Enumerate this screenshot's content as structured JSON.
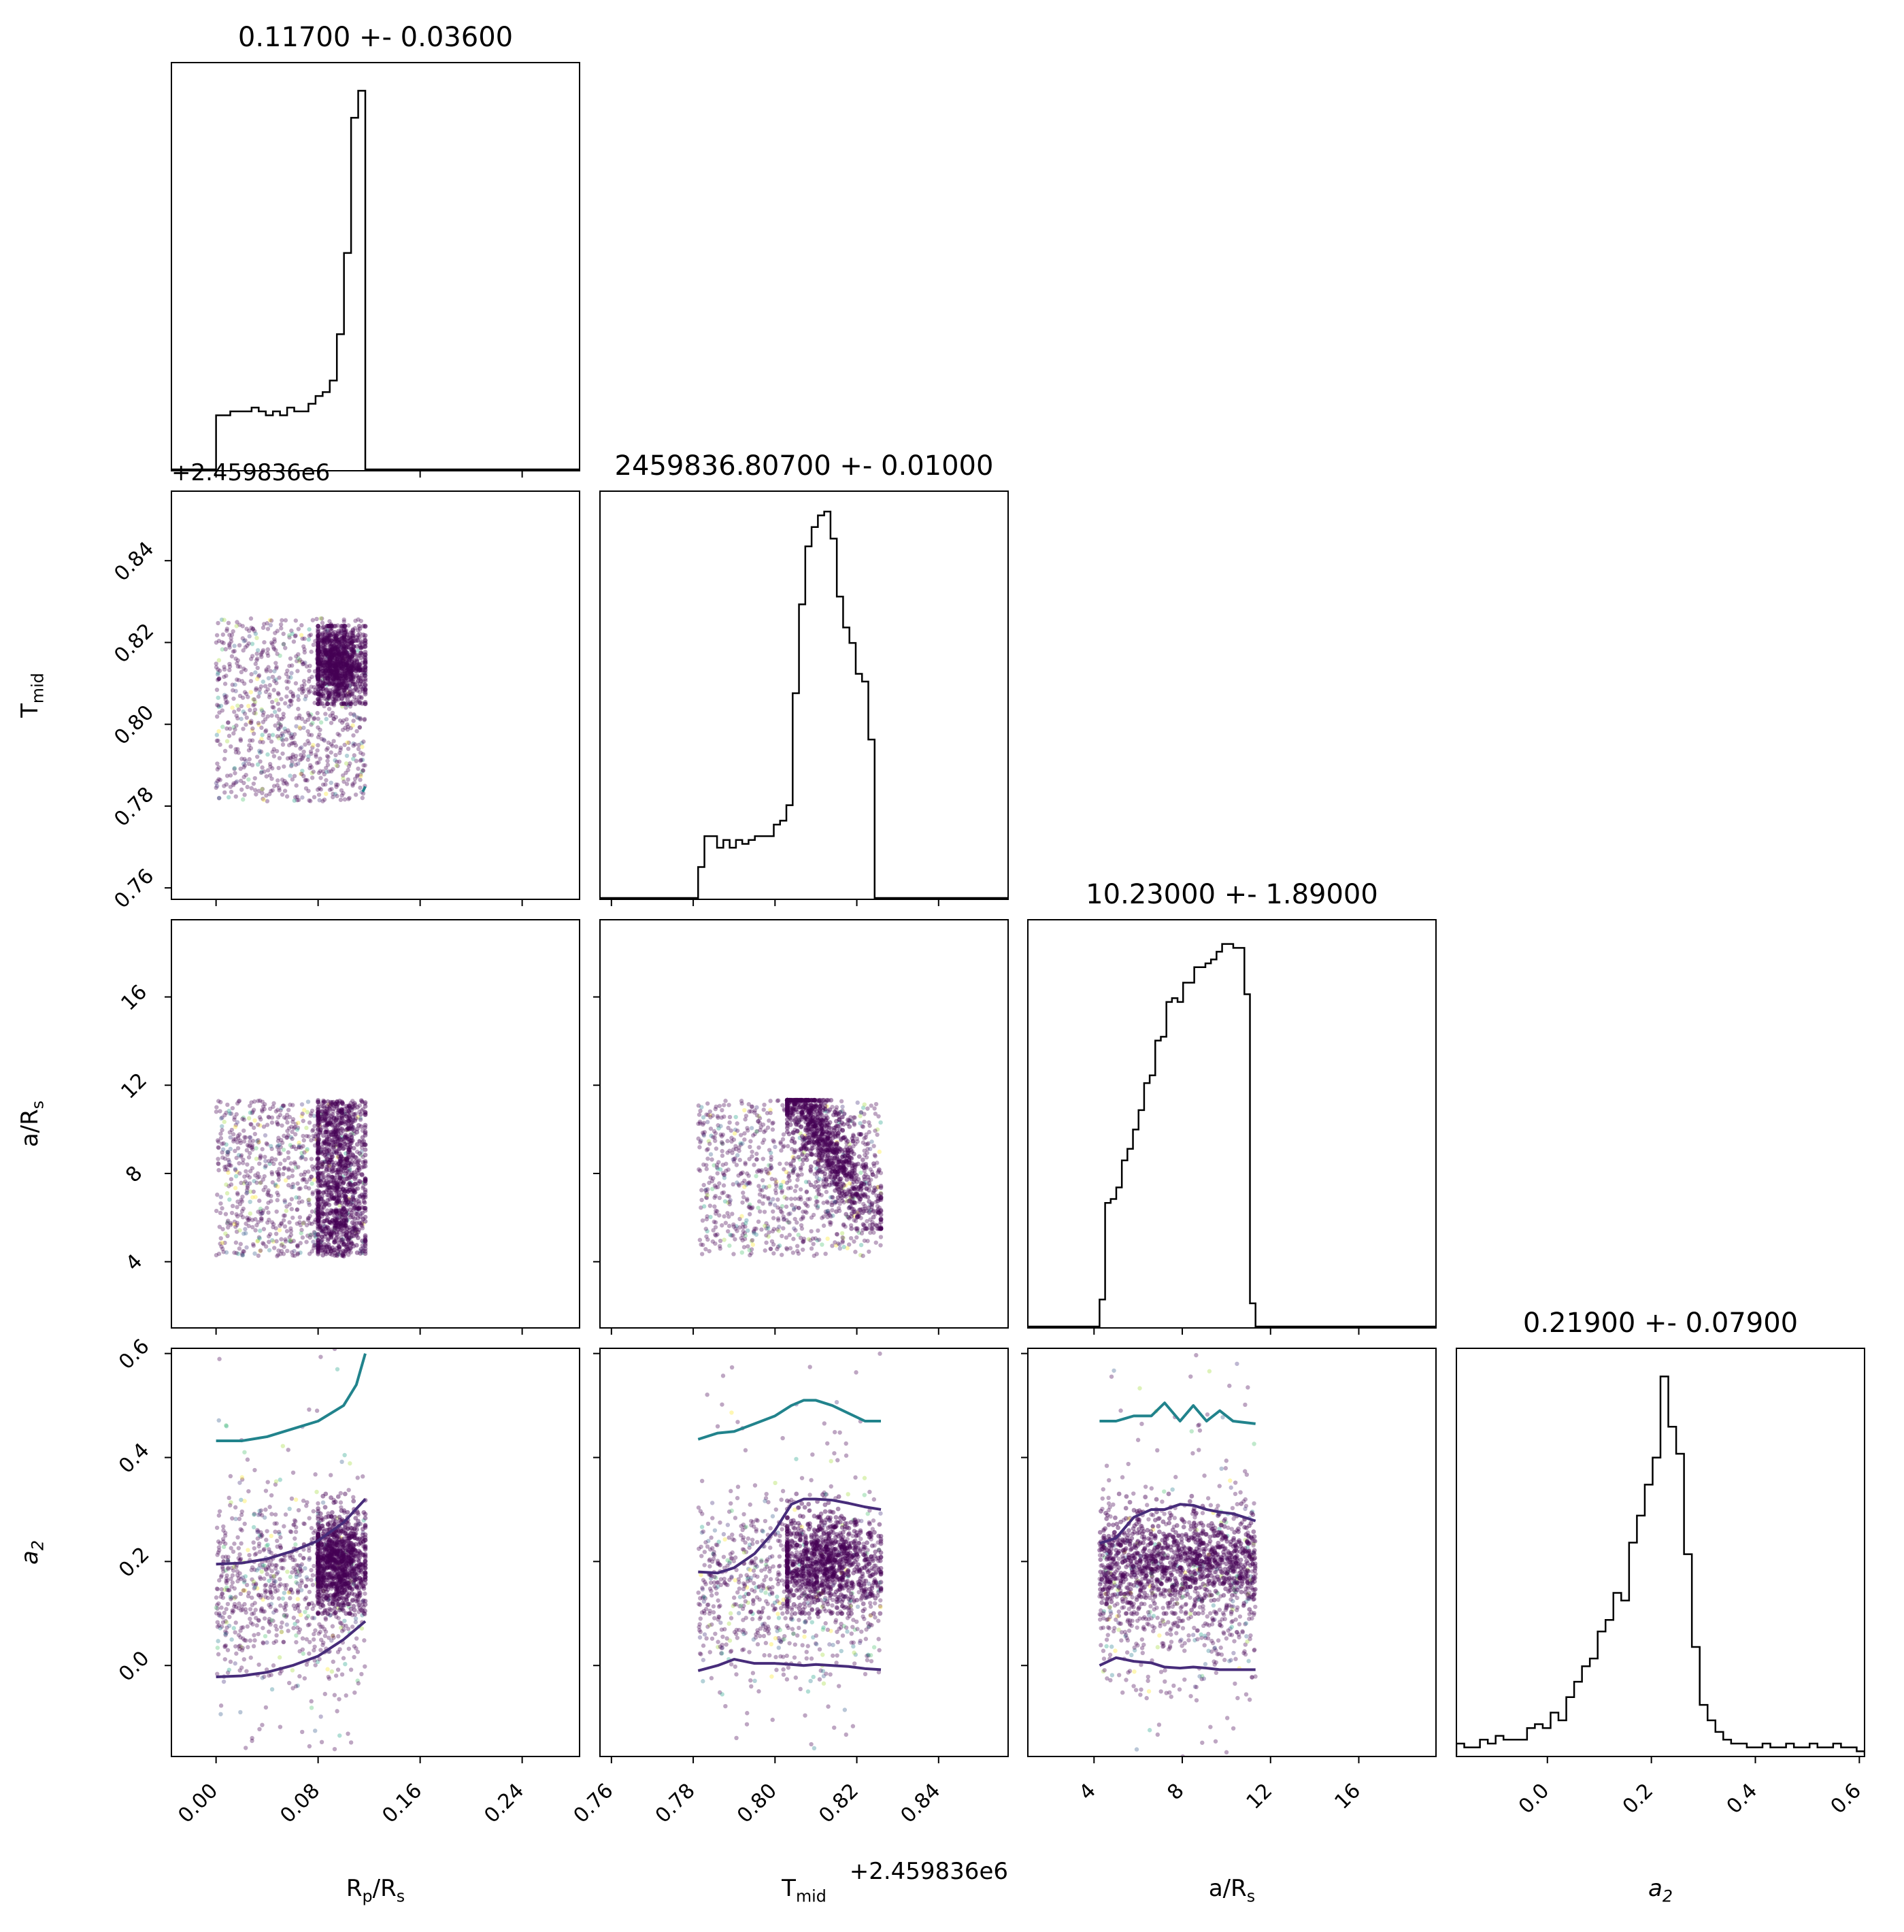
{
  "chart_data": {
    "type": "corner",
    "parameters": [
      {
        "key": "rp",
        "label": "R",
        "sub": "p",
        "label_suffix": "/R",
        "suffix_sub": "s",
        "range": [
          -0.035,
          0.285
        ],
        "ticks": [
          "0.00",
          "0.08",
          "0.16",
          "0.24"
        ],
        "tick_values": [
          0.0,
          0.08,
          0.16,
          0.24
        ],
        "title": "0.11700 +- 0.03600"
      },
      {
        "key": "tmid",
        "label": "T",
        "sub": "mid",
        "label_suffix": "",
        "suffix_sub": "",
        "range": [
          0.7572,
          0.857
        ],
        "ticks": [
          "0.76",
          "0.78",
          "0.80",
          "0.82",
          "0.84"
        ],
        "tick_values": [
          0.76,
          0.78,
          0.8,
          0.82,
          0.84
        ],
        "offset_text": "+2.459836e6",
        "title": "2459836.80700 +- 0.01000"
      },
      {
        "key": "ars",
        "label": "a/R",
        "sub": "s",
        "label_suffix": "",
        "suffix_sub": "",
        "range": [
          1.0,
          19.5
        ],
        "ticks": [
          "4",
          "8",
          "12",
          "16"
        ],
        "tick_values": [
          4,
          8,
          12,
          16
        ],
        "title": "10.23000 +- 1.89000"
      },
      {
        "key": "a2",
        "label": "a",
        "sub": "2",
        "label_suffix": "",
        "suffix_sub": "",
        "italic": true,
        "range": [
          -0.175,
          0.61
        ],
        "ticks": [
          "0.0",
          "0.2",
          "0.4",
          "0.6"
        ],
        "tick_values": [
          0.0,
          0.2,
          0.4,
          0.6
        ],
        "y_ticks": [
          "0.0",
          "0.2",
          "0.4",
          "0.6"
        ],
        "y_tick_values": [
          0.0,
          0.2,
          0.4,
          0.6
        ],
        "title": "0.21900 +- 0.07900"
      }
    ],
    "y_tick_overrides": {
      "rp": [
        "0.76",
        "0.78",
        "0.80",
        "0.82",
        "0.84"
      ]
    },
    "histograms": {
      "rp": {
        "bin_start": 0.0,
        "bin_end": 0.117,
        "heights": [
          0.14,
          0.14,
          0.15,
          0.15,
          0.15,
          0.16,
          0.15,
          0.14,
          0.15,
          0.14,
          0.16,
          0.15,
          0.15,
          0.17,
          0.19,
          0.2,
          0.23,
          0.35,
          0.56,
          0.91,
          0.98
        ]
      },
      "tmid": {
        "bin_start": 0.7812,
        "bin_end": 0.8259,
        "heights": [
          0.08,
          0.16,
          0.16,
          0.13,
          0.15,
          0.13,
          0.15,
          0.14,
          0.15,
          0.16,
          0.16,
          0.16,
          0.19,
          0.2,
          0.24,
          0.53,
          0.76,
          0.91,
          0.96,
          0.99,
          1.0,
          0.93,
          0.78,
          0.7,
          0.66,
          0.58,
          0.56,
          0.41,
          0.0
        ]
      },
      "ars": {
        "bin_start": 4.25,
        "bin_end": 11.32,
        "heights": [
          0.07,
          0.32,
          0.33,
          0.36,
          0.43,
          0.46,
          0.51,
          0.56,
          0.63,
          0.65,
          0.74,
          0.75,
          0.84,
          0.85,
          0.84,
          0.89,
          0.89,
          0.93,
          0.93,
          0.94,
          0.95,
          0.97,
          0.99,
          0.99,
          0.98,
          0.98,
          0.86,
          0.06
        ]
      },
      "a2": {
        "bin_start": -0.175,
        "bin_end": 0.61,
        "heights": [
          0.03,
          0.02,
          0.02,
          0.04,
          0.03,
          0.05,
          0.04,
          0.04,
          0.04,
          0.07,
          0.08,
          0.07,
          0.11,
          0.09,
          0.15,
          0.19,
          0.23,
          0.25,
          0.32,
          0.35,
          0.42,
          0.4,
          0.55,
          0.62,
          0.7,
          0.77,
          0.98,
          0.85,
          0.78,
          0.52,
          0.28,
          0.13,
          0.09,
          0.06,
          0.04,
          0.03,
          0.03,
          0.02,
          0.02,
          0.03,
          0.02,
          0.02,
          0.03,
          0.02,
          0.02,
          0.03,
          0.02,
          0.02,
          0.03,
          0.02,
          0.02,
          0.01
        ]
      }
    },
    "scatter_bounds": {
      "rp": [
        0.0,
        0.117
      ],
      "tmid": [
        0.7812,
        0.8259
      ],
      "ars": [
        4.25,
        11.32
      ],
      "a2": [
        -0.175,
        0.61
      ]
    },
    "contours": {
      "a2_vs_rp": [
        {
          "level": "outer",
          "color": "#21838c",
          "x": [
            0.0,
            0.02,
            0.04,
            0.06,
            0.08,
            0.1,
            0.11,
            0.117
          ],
          "y": [
            0.432,
            0.432,
            0.44,
            0.455,
            0.47,
            0.5,
            0.54,
            0.6
          ]
        },
        {
          "level": "mid",
          "color": "#472c7a",
          "x": [
            0.0,
            0.02,
            0.04,
            0.06,
            0.08,
            0.1,
            0.117
          ],
          "y": [
            0.195,
            0.197,
            0.205,
            0.22,
            0.24,
            0.275,
            0.32
          ]
        },
        {
          "level": "low",
          "color": "#472c7a",
          "x": [
            0.0,
            0.02,
            0.04,
            0.06,
            0.08,
            0.1,
            0.117
          ],
          "y": [
            -0.022,
            -0.02,
            -0.013,
            0.0,
            0.018,
            0.05,
            0.085
          ]
        }
      ],
      "a2_vs_tmid": [
        {
          "level": "outer",
          "color": "#21838c",
          "x": [
            0.7812,
            0.786,
            0.79,
            0.795,
            0.8,
            0.804,
            0.807,
            0.81,
            0.814,
            0.818,
            0.822,
            0.8259
          ],
          "y": [
            0.435,
            0.447,
            0.45,
            0.465,
            0.48,
            0.5,
            0.51,
            0.51,
            0.5,
            0.485,
            0.47,
            0.47
          ]
        },
        {
          "level": "mid",
          "color": "#472c7a",
          "x": [
            0.7812,
            0.786,
            0.79,
            0.795,
            0.8,
            0.804,
            0.807,
            0.81,
            0.814,
            0.818,
            0.822,
            0.8259
          ],
          "y": [
            0.18,
            0.178,
            0.188,
            0.215,
            0.26,
            0.31,
            0.32,
            0.32,
            0.318,
            0.312,
            0.305,
            0.3
          ]
        },
        {
          "level": "low",
          "color": "#472c7a",
          "x": [
            0.7812,
            0.786,
            0.79,
            0.795,
            0.8,
            0.804,
            0.807,
            0.81,
            0.814,
            0.818,
            0.822,
            0.8259
          ],
          "y": [
            -0.01,
            0.0,
            0.012,
            0.004,
            0.004,
            0.002,
            0.0,
            0.002,
            0.0,
            -0.002,
            -0.006,
            -0.008
          ]
        }
      ],
      "a2_vs_ars": [
        {
          "level": "outer",
          "color": "#21838c",
          "x": [
            4.25,
            5.0,
            5.8,
            6.6,
            7.2,
            7.9,
            8.5,
            9.1,
            9.7,
            10.3,
            11.32
          ],
          "y": [
            0.47,
            0.47,
            0.48,
            0.48,
            0.505,
            0.47,
            0.5,
            0.47,
            0.49,
            0.47,
            0.465
          ]
        },
        {
          "level": "mid",
          "color": "#472c7a",
          "x": [
            4.25,
            5.0,
            5.8,
            6.6,
            7.2,
            7.9,
            8.5,
            9.1,
            9.7,
            10.3,
            11.32
          ],
          "y": [
            0.235,
            0.245,
            0.285,
            0.3,
            0.3,
            0.31,
            0.308,
            0.3,
            0.295,
            0.292,
            0.278
          ]
        },
        {
          "level": "low",
          "color": "#472c7a",
          "x": [
            4.25,
            5.0,
            5.8,
            6.6,
            7.2,
            7.9,
            8.5,
            9.1,
            9.7,
            10.3,
            11.32
          ],
          "y": [
            0.0,
            0.015,
            0.008,
            0.005,
            -0.003,
            -0.005,
            -0.003,
            -0.005,
            -0.008,
            -0.008,
            -0.008
          ]
        }
      ],
      "tmid_vs_rp": [
        {
          "level": "outer",
          "color": "#21838c",
          "x": [
            0.115,
            0.117
          ],
          "y": [
            0.7835,
            0.7848
          ]
        }
      ]
    },
    "colormap": "viridis",
    "grid": false,
    "legend": "none"
  }
}
